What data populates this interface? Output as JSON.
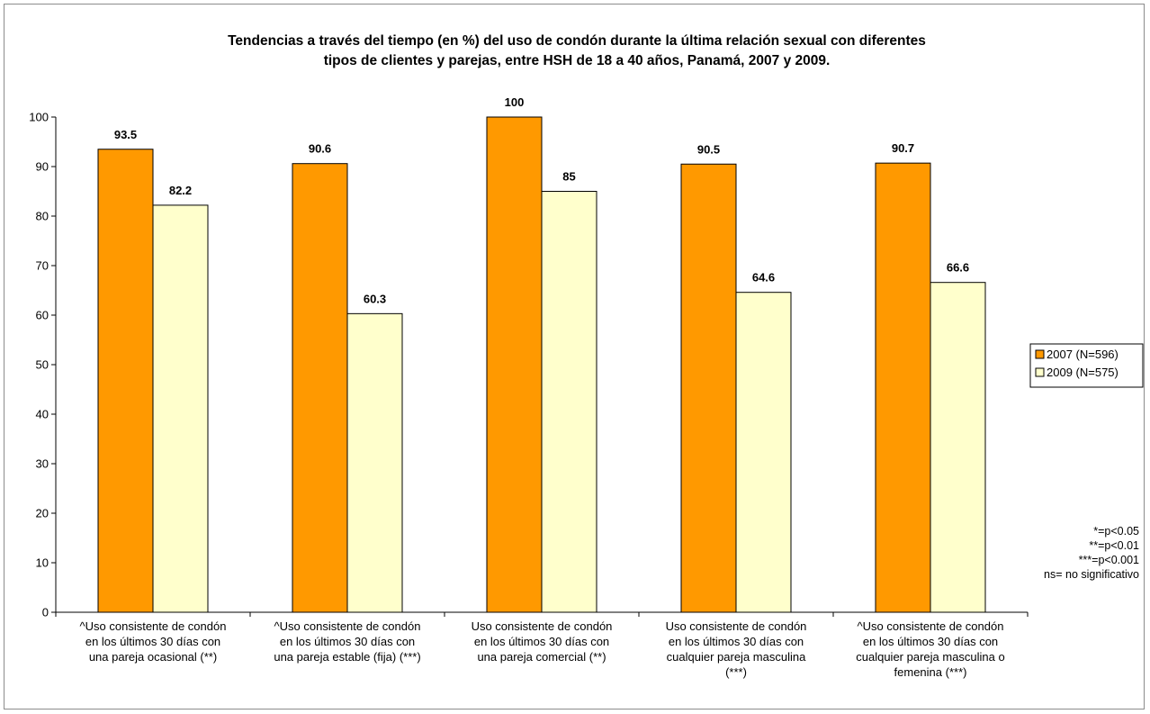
{
  "chart_data": {
    "type": "bar",
    "title_lines": [
      "Tendencias a través del tiempo (en %) del uso de condón durante la última relación sexual con diferentes",
      "tipos de clientes y parejas, entre HSH de 18 a 40 años, Panamá, 2007 y 2009."
    ],
    "categories": [
      [
        "^Uso consistente  de condón",
        "en los últimos 30 días con",
        "una pareja ocasional (**)"
      ],
      [
        "^Uso consistente  de condón",
        "en los últimos 30 días con",
        "una pareja estable (fija) (***)"
      ],
      [
        "Uso consistente  de condón",
        "en los últimos 30 días con",
        "una pareja comercial (**)"
      ],
      [
        "Uso consistente  de condón",
        "en los últimos 30 días con",
        "cualquier pareja  masculina",
        "(***)"
      ],
      [
        "^Uso consistente  de condón",
        "en los últimos 30 días con",
        "cualquier pareja masculina o",
        "femenina (***)"
      ]
    ],
    "series": [
      {
        "name": "2007 (N=596)",
        "values": [
          93.5,
          90.6,
          100,
          90.5,
          90.7
        ],
        "labels": [
          "93.5",
          "90.6",
          "100",
          "90.5",
          "90.7"
        ],
        "color": "#ff9900"
      },
      {
        "name": "2009 (N=575)",
        "values": [
          82.2,
          60.3,
          85,
          64.6,
          66.6
        ],
        "labels": [
          "82.2",
          "60.3",
          "85",
          "64.6",
          "66.6"
        ],
        "color": "#ffffcc"
      }
    ],
    "ylim": [
      0,
      100
    ],
    "yticks": [
      0,
      10,
      20,
      30,
      40,
      50,
      60,
      70,
      80,
      90,
      100
    ],
    "grid": false,
    "legend": "right",
    "notes": [
      "*=p<0.05",
      "**=p<0.01",
      "***=p<0.001",
      "ns= no significativo"
    ]
  }
}
